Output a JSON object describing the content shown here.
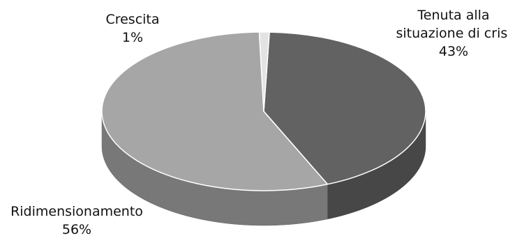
{
  "chart_data": {
    "type": "pie",
    "style": "3d",
    "slices": [
      {
        "label": "Tenuta alla situazione di crisi",
        "label_lines": [
          "Tenuta alla",
          "situazione di crisi"
        ],
        "value": 43,
        "value_text": "43%",
        "color": "#626262"
      },
      {
        "label": "Ridimensionamento",
        "label_lines": [
          "Ridimensionamento"
        ],
        "value": 56,
        "value_text": "56%",
        "color": "#a6a6a6"
      },
      {
        "label": "Crescita",
        "label_lines": [
          "Crescita"
        ],
        "value": 1,
        "value_text": "1%",
        "color": "#e3e3e3"
      }
    ]
  }
}
